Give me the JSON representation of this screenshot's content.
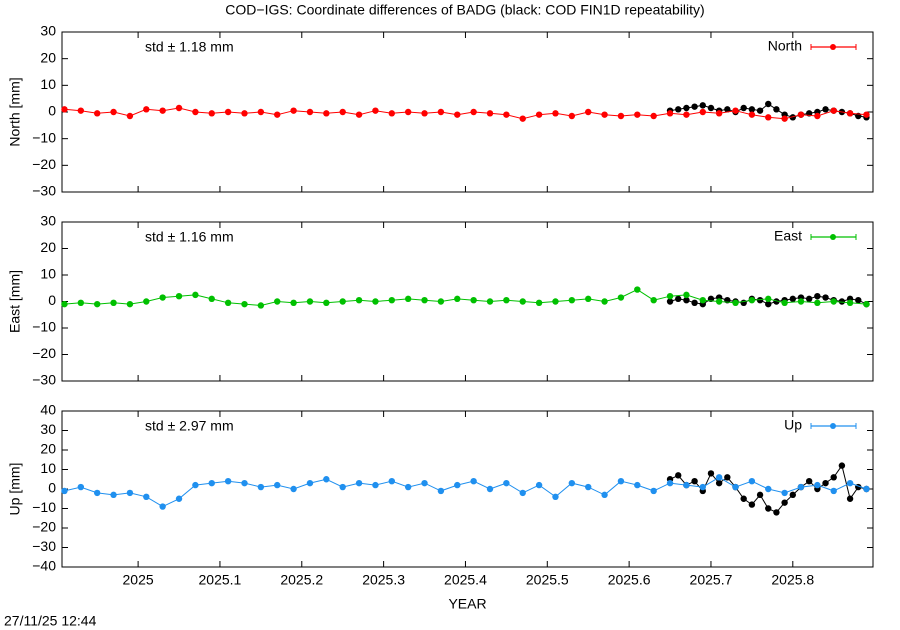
{
  "footer": "27/11/25 12:44",
  "chart_data": [
    {
      "type": "line",
      "title": "COD−IGS: Coordinate differences of BADG (black: COD FIN1D repeatability)",
      "ylabel": "North [mm]",
      "annotation": "std ± 1.18 mm",
      "xlim": [
        2024.907,
        2025.898
      ],
      "xticks": [
        2025,
        2025.1,
        2025.2,
        2025.3,
        2025.4,
        2025.5,
        2025.6,
        2025.7,
        2025.8
      ],
      "ylim": [
        -30,
        30
      ],
      "yticks": [
        {
          "value": -30,
          "label": "−30"
        },
        {
          "value": -20,
          "label": "−20"
        },
        {
          "value": -10,
          "label": "−10"
        },
        0,
        10,
        20,
        30
      ],
      "x": [
        2024.91,
        2024.93,
        2024.95,
        2024.97,
        2024.99,
        2025.01,
        2025.03,
        2025.05,
        2025.07,
        2025.09,
        2025.11,
        2025.13,
        2025.15,
        2025.17,
        2025.19,
        2025.21,
        2025.23,
        2025.25,
        2025.27,
        2025.29,
        2025.31,
        2025.33,
        2025.35,
        2025.37,
        2025.39,
        2025.41,
        2025.43,
        2025.45,
        2025.47,
        2025.49,
        2025.51,
        2025.53,
        2025.55,
        2025.57,
        2025.59,
        2025.61,
        2025.63,
        2025.65,
        2025.67,
        2025.69,
        2025.71,
        2025.73,
        2025.75,
        2025.77,
        2025.79,
        2025.81,
        2025.83,
        2025.85,
        2025.87,
        2025.89
      ],
      "series": [
        {
          "color": "#000000",
          "x": [
            2025.65,
            2025.66,
            2025.67,
            2025.68,
            2025.69,
            2025.7,
            2025.71,
            2025.72,
            2025.73,
            2025.74,
            2025.75,
            2025.76,
            2025.77,
            2025.78,
            2025.79,
            2025.8,
            2025.81,
            2025.82,
            2025.83,
            2025.84,
            2025.85,
            2025.86,
            2025.87,
            2025.88,
            2025.89
          ],
          "values": [
            0.5,
            1,
            1.5,
            2,
            2.5,
            1.5,
            0.5,
            1,
            0,
            1.5,
            1,
            0.5,
            3,
            1,
            -1,
            -2,
            -1,
            -0.5,
            0,
            1,
            0.5,
            0,
            -0.5,
            -1.5,
            -2
          ]
        },
        {
          "name": "North",
          "color": "#ff0000",
          "values": [
            1,
            0.5,
            -0.5,
            0,
            -1.5,
            1,
            0.5,
            1.5,
            0,
            -0.5,
            0,
            -0.5,
            0,
            -1,
            0.5,
            0,
            -0.5,
            0,
            -1,
            0.5,
            -0.5,
            0,
            -0.5,
            0,
            -1,
            0,
            -0.5,
            -1,
            -2.5,
            -1,
            -0.5,
            -1.5,
            0,
            -1,
            -1.5,
            -1,
            -1.5,
            -0.5,
            -1,
            0,
            -0.5,
            0.5,
            -1,
            -2,
            -2.5,
            -1,
            -1.5,
            0.5,
            -0.5,
            -1
          ]
        }
      ]
    },
    {
      "type": "line",
      "ylabel": "East [mm]",
      "annotation": "std ± 1.16 mm",
      "xlim": [
        2024.907,
        2025.898
      ],
      "xticks": [
        2025,
        2025.1,
        2025.2,
        2025.3,
        2025.4,
        2025.5,
        2025.6,
        2025.7,
        2025.8
      ],
      "ylim": [
        -30,
        30
      ],
      "yticks": [
        {
          "value": -30,
          "label": "−30"
        },
        {
          "value": -20,
          "label": "−20"
        },
        {
          "value": -10,
          "label": "−10"
        },
        0,
        10,
        20,
        30
      ],
      "x": [
        2024.91,
        2024.93,
        2024.95,
        2024.97,
        2024.99,
        2025.01,
        2025.03,
        2025.05,
        2025.07,
        2025.09,
        2025.11,
        2025.13,
        2025.15,
        2025.17,
        2025.19,
        2025.21,
        2025.23,
        2025.25,
        2025.27,
        2025.29,
        2025.31,
        2025.33,
        2025.35,
        2025.37,
        2025.39,
        2025.41,
        2025.43,
        2025.45,
        2025.47,
        2025.49,
        2025.51,
        2025.53,
        2025.55,
        2025.57,
        2025.59,
        2025.61,
        2025.63,
        2025.65,
        2025.67,
        2025.69,
        2025.71,
        2025.73,
        2025.75,
        2025.77,
        2025.79,
        2025.81,
        2025.83,
        2025.85,
        2025.87,
        2025.89
      ],
      "series": [
        {
          "color": "#000000",
          "x": [
            2025.65,
            2025.66,
            2025.67,
            2025.68,
            2025.69,
            2025.7,
            2025.71,
            2025.72,
            2025.73,
            2025.74,
            2025.75,
            2025.76,
            2025.77,
            2025.78,
            2025.79,
            2025.8,
            2025.81,
            2025.82,
            2025.83,
            2025.84,
            2025.85,
            2025.86,
            2025.87,
            2025.88,
            2025.89
          ],
          "values": [
            0,
            1,
            0.5,
            -0.5,
            -1,
            1,
            1.5,
            0.5,
            0,
            -0.5,
            1,
            0.5,
            -1,
            0,
            0.5,
            1,
            1.5,
            1,
            2,
            1.5,
            0.5,
            0,
            1,
            0.5,
            -1
          ]
        },
        {
          "name": "East",
          "color": "#00c000",
          "values": [
            -1,
            -0.5,
            -1,
            -0.5,
            -1,
            0,
            1.5,
            2,
            2.5,
            1,
            -0.5,
            -1,
            -1.5,
            0,
            -0.5,
            0,
            -0.5,
            0,
            0.5,
            0,
            0.5,
            1,
            0.5,
            0,
            1,
            0.5,
            0,
            0.5,
            0,
            -0.5,
            0,
            0.5,
            1,
            0,
            1.5,
            4.5,
            0.5,
            2,
            2.5,
            0.5,
            0,
            -0.5,
            0.5,
            1,
            -0.5,
            0,
            -0.5,
            0,
            -0.5,
            -1
          ]
        }
      ]
    },
    {
      "type": "line",
      "ylabel": "Up [mm]",
      "annotation": "std ± 2.97 mm",
      "xlabel": "YEAR",
      "xlim": [
        2024.907,
        2025.898
      ],
      "xticks": [
        2025,
        2025.1,
        2025.2,
        2025.3,
        2025.4,
        2025.5,
        2025.6,
        2025.7,
        2025.8
      ],
      "ylim": [
        -40,
        40
      ],
      "yticks": [
        {
          "value": -40,
          "label": "−40"
        },
        {
          "value": -30,
          "label": "−30"
        },
        {
          "value": -20,
          "label": "−20"
        },
        {
          "value": -10,
          "label": "−10"
        },
        0,
        10,
        20,
        30,
        40
      ],
      "x": [
        2024.91,
        2024.93,
        2024.95,
        2024.97,
        2024.99,
        2025.01,
        2025.03,
        2025.05,
        2025.07,
        2025.09,
        2025.11,
        2025.13,
        2025.15,
        2025.17,
        2025.19,
        2025.21,
        2025.23,
        2025.25,
        2025.27,
        2025.29,
        2025.31,
        2025.33,
        2025.35,
        2025.37,
        2025.39,
        2025.41,
        2025.43,
        2025.45,
        2025.47,
        2025.49,
        2025.51,
        2025.53,
        2025.55,
        2025.57,
        2025.59,
        2025.61,
        2025.63,
        2025.65,
        2025.67,
        2025.69,
        2025.71,
        2025.73,
        2025.75,
        2025.77,
        2025.79,
        2025.81,
        2025.83,
        2025.85,
        2025.87,
        2025.89
      ],
      "series": [
        {
          "color": "#000000",
          "x": [
            2025.65,
            2025.66,
            2025.67,
            2025.68,
            2025.69,
            2025.7,
            2025.71,
            2025.72,
            2025.73,
            2025.74,
            2025.75,
            2025.76,
            2025.77,
            2025.78,
            2025.79,
            2025.8,
            2025.81,
            2025.82,
            2025.83,
            2025.84,
            2025.85,
            2025.86,
            2025.87,
            2025.88,
            2025.89
          ],
          "values": [
            5,
            7,
            2,
            4,
            -1,
            8,
            3,
            6,
            1,
            -5,
            -8,
            -3,
            -10,
            -12,
            -7,
            -3,
            1,
            4,
            0,
            3,
            6,
            12,
            -5,
            1,
            0
          ]
        },
        {
          "name": "Up",
          "color": "#2090ef",
          "values": [
            -1,
            1,
            -2,
            -3,
            -2,
            -4,
            -9,
            -5,
            2,
            3,
            4,
            3,
            1,
            2,
            0,
            3,
            5,
            1,
            3,
            2,
            4,
            1,
            3,
            -1,
            2,
            4,
            0,
            3,
            -2,
            2,
            -4,
            3,
            1,
            -3,
            4,
            2,
            -1,
            3,
            2,
            1,
            6,
            1,
            4,
            0,
            -2,
            1,
            2,
            -1,
            3,
            0
          ]
        }
      ]
    }
  ]
}
